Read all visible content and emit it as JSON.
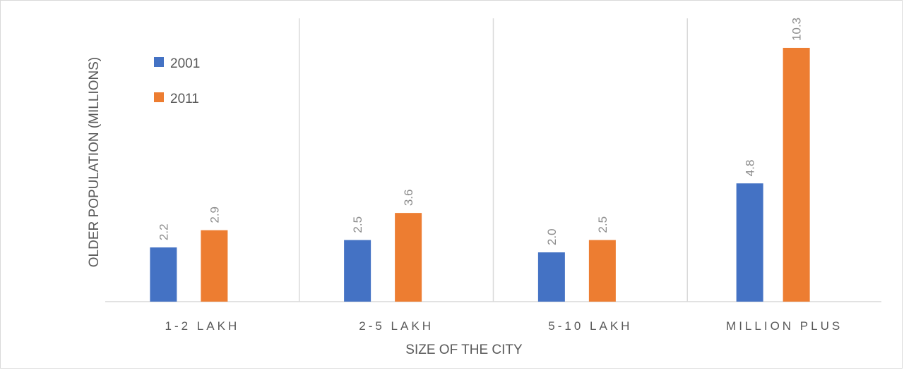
{
  "chart_data": {
    "type": "bar",
    "categories": [
      "1-2 LAKH",
      "2-5 LAKH",
      "5-10 LAKH",
      "MILLION PLUS"
    ],
    "series": [
      {
        "name": "2001",
        "values": [
          2.2,
          2.5,
          2.0,
          4.8
        ],
        "color": "#4472C4"
      },
      {
        "name": "2011",
        "values": [
          2.9,
          3.6,
          2.5,
          10.3
        ],
        "color": "#ED7D31"
      }
    ],
    "value_labels": [
      [
        "2.2",
        "2.5",
        "2.0",
        "4.8"
      ],
      [
        "2.9",
        "3.6",
        "2.5",
        "10.3"
      ]
    ],
    "xlabel": "SIZE OF THE CITY",
    "ylabel": "OLDER POPULATION (MILLIONS)",
    "ylim": [
      0,
      11.5
    ],
    "grid": "vertical category separators",
    "legend_position": "top-left"
  }
}
